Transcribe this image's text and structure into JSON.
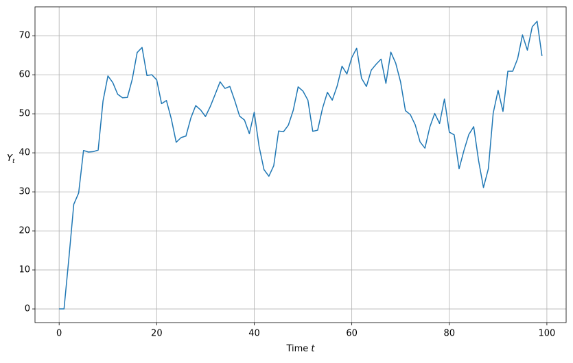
{
  "chart_data": {
    "type": "line",
    "xlabel": {
      "text": "Time",
      "variable": "t"
    },
    "ylabel": {
      "symbol": "Y",
      "subscript": "t"
    },
    "x": [
      0,
      1,
      2,
      3,
      4,
      5,
      6,
      7,
      8,
      9,
      10,
      11,
      12,
      13,
      14,
      15,
      16,
      17,
      18,
      19,
      20,
      21,
      22,
      23,
      24,
      25,
      26,
      27,
      28,
      29,
      30,
      31,
      32,
      33,
      34,
      35,
      36,
      37,
      38,
      39,
      40,
      41,
      42,
      43,
      44,
      45,
      46,
      47,
      48,
      49,
      50,
      51,
      52,
      53,
      54,
      55,
      56,
      57,
      58,
      59,
      60,
      61,
      62,
      63,
      64,
      65,
      66,
      67,
      68,
      69,
      70,
      71,
      72,
      73,
      74,
      75,
      76,
      77,
      78,
      79,
      80,
      81,
      82,
      83,
      84,
      85,
      86,
      87,
      88,
      89,
      90,
      91,
      92,
      93,
      94,
      95,
      96,
      97,
      98,
      99
    ],
    "series": [
      {
        "color": "#1f77b4",
        "values": [
          0,
          0,
          13,
          26.8,
          29.7,
          40.6,
          40.2,
          40.3,
          40.7,
          53.3,
          59.7,
          58.0,
          55.0,
          54.1,
          54.2,
          58.9,
          65.7,
          67.0,
          59.8,
          60.0,
          58.7,
          52.6,
          53.4,
          48.7,
          42.7,
          43.9,
          44.3,
          48.9,
          52.1,
          51.0,
          49.3,
          51.9,
          55.0,
          58.2,
          56.5,
          57.0,
          53.4,
          49.4,
          48.4,
          44.9,
          50.4,
          41.6,
          35.7,
          34.0,
          36.7,
          45.6,
          45.4,
          47.1,
          50.9,
          56.9,
          55.8,
          53.5,
          45.5,
          45.8,
          51.4,
          55.5,
          53.5,
          57.1,
          62.2,
          60.2,
          64.4,
          66.8,
          59.1,
          57.0,
          61.2,
          62.7,
          64.0,
          57.8,
          65.8,
          63.0,
          58.2,
          50.8,
          49.8,
          47.2,
          42.8,
          41.2,
          46.6,
          50.1,
          47.5,
          53.8,
          45.3,
          44.6,
          35.9,
          40.6,
          44.7,
          46.7,
          38.0,
          31.1,
          35.9,
          50.2,
          56.0,
          50.6,
          60.9,
          60.9,
          64.1,
          70.2,
          66.3,
          72.3,
          73.7,
          64.8
        ]
      }
    ],
    "xlim": [
      -4.95,
      103.95
    ],
    "xticks": [
      0,
      20,
      40,
      60,
      80,
      100
    ],
    "ylim": [
      -3.5,
      77.4
    ],
    "yticks": [
      0,
      10,
      20,
      30,
      40,
      50,
      60,
      70
    ],
    "grid": true
  }
}
